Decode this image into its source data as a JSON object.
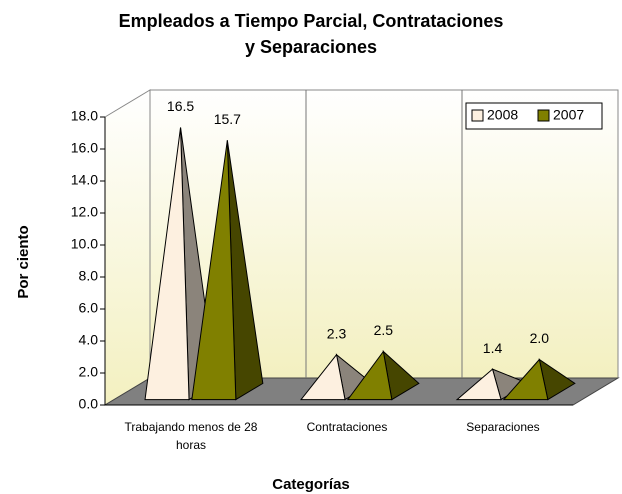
{
  "chart_data": {
    "type": "bar3d-pyramid",
    "title": [
      "Empleados a Tiempo Parcial, Contrataciones",
      "y  Separaciones"
    ],
    "y_label": "Por ciento",
    "x_label": "Categorías",
    "categories": [
      "Trabajando menos de 28 horas",
      "Contrataciones",
      "Separaciones"
    ],
    "series": [
      {
        "name": "2008",
        "color": "#fdf0e0",
        "values": [
          16.5,
          2.3,
          1.4
        ],
        "value_labels": [
          "16.5",
          "2.3",
          "1.4"
        ]
      },
      {
        "name": "2007",
        "color": "#808000",
        "values": [
          15.7,
          2.5,
          2.0
        ],
        "value_labels": [
          "15.7",
          "2.5",
          "2.0"
        ]
      }
    ],
    "ylim": [
      0,
      18
    ],
    "yticks": [
      {
        "value": 0,
        "label": "0.0"
      },
      {
        "value": 2,
        "label": "2.0"
      },
      {
        "value": 4,
        "label": "4.0"
      },
      {
        "value": 6,
        "label": "6.0"
      },
      {
        "value": 8,
        "label": "8.0"
      },
      {
        "value": 10,
        "label": "10.0"
      },
      {
        "value": 12,
        "label": "12.0"
      },
      {
        "value": 14,
        "label": "14.0"
      },
      {
        "value": 16,
        "label": "16.0"
      },
      {
        "value": 18,
        "label": "18.0"
      }
    ],
    "legend": "top-right",
    "grid": false
  }
}
